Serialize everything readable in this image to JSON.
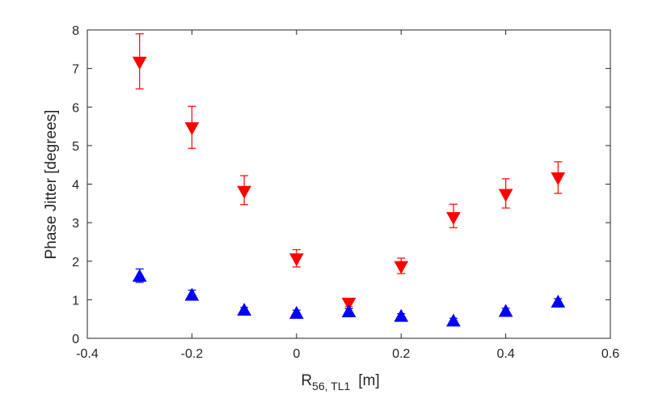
{
  "chart_data": {
    "type": "scatter",
    "title": "",
    "xlabel": {
      "main": "R",
      "subscript": "56, TL1",
      "unit": "[m]"
    },
    "ylabel": "Phase Jitter [degrees]",
    "xlim": [
      -0.4,
      0.6
    ],
    "ylim": [
      0,
      8
    ],
    "xticks": [
      -0.4,
      -0.2,
      0,
      0.2,
      0.4,
      0.6
    ],
    "xtick_labels": [
      "-0.4",
      "-0.2",
      "0",
      "0.2",
      "0.4",
      "0.6"
    ],
    "yticks": [
      0,
      1,
      2,
      3,
      4,
      5,
      6,
      7,
      8
    ],
    "ytick_labels": [
      "0",
      "1",
      "2",
      "3",
      "4",
      "5",
      "6",
      "7",
      "8"
    ],
    "grid": false,
    "series": [
      {
        "name": "red down-triangle",
        "color": "#ff0000",
        "marker": "triangle-down",
        "x": [
          -0.3,
          -0.2,
          -0.1,
          0,
          0.1,
          0.2,
          0.3,
          0.4,
          0.5
        ],
        "y": [
          7.15,
          5.45,
          3.8,
          2.05,
          0.9,
          1.85,
          3.12,
          3.72,
          4.15
        ],
        "yerr_low": [
          6.47,
          4.93,
          3.47,
          1.85,
          0.82,
          1.68,
          2.87,
          3.38,
          3.76
        ],
        "yerr_high": [
          7.9,
          6.02,
          4.22,
          2.3,
          1.0,
          2.08,
          3.48,
          4.14,
          4.58
        ]
      },
      {
        "name": "blue up-triangle",
        "color": "#0000ff",
        "marker": "triangle-up",
        "x": [
          -0.3,
          -0.2,
          -0.1,
          0,
          0.1,
          0.2,
          0.3,
          0.4,
          0.5
        ],
        "y": [
          1.62,
          1.13,
          0.74,
          0.66,
          0.7,
          0.58,
          0.46,
          0.71,
          0.95
        ],
        "yerr_low": [
          1.45,
          1.02,
          0.68,
          0.6,
          0.64,
          0.52,
          0.41,
          0.64,
          0.87
        ],
        "yerr_high": [
          1.8,
          1.25,
          0.8,
          0.73,
          0.77,
          0.64,
          0.52,
          0.78,
          1.03
        ]
      }
    ]
  }
}
